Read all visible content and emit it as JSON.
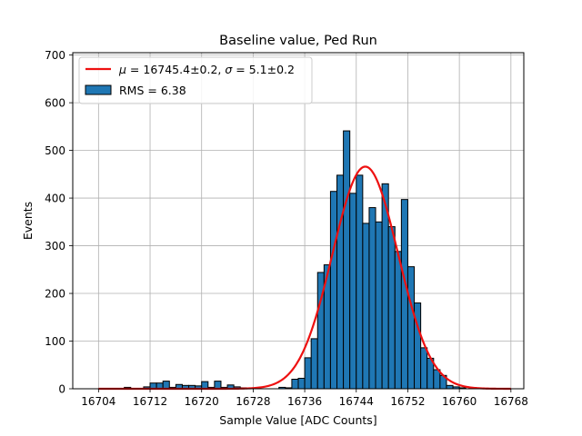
{
  "chart_data": {
    "type": "bar",
    "title": "Baseline value, Ped Run",
    "xlabel": "Sample Value [ADC Counts]",
    "ylabel": "Events",
    "xlim": [
      16700.0,
      16770.0
    ],
    "ylim": [
      0,
      705
    ],
    "x_ticks": [
      16704,
      16712,
      16720,
      16728,
      16736,
      16744,
      16752,
      16760,
      16768
    ],
    "y_ticks": [
      0,
      100,
      200,
      300,
      400,
      500,
      600,
      700
    ],
    "grid": true,
    "legend_position": "top-left",
    "bin_width": 1,
    "histogram": {
      "name": "RMS = 6.38",
      "color": "#1f77b4",
      "bin_left_edges": [
        16708,
        16711,
        16712,
        16713,
        16714,
        16715,
        16716,
        16717,
        16718,
        16719,
        16720,
        16721,
        16722,
        16723,
        16724,
        16725,
        16726,
        16727,
        16728,
        16729,
        16730,
        16731,
        16732,
        16733,
        16734,
        16735,
        16736,
        16737,
        16738,
        16739,
        16740,
        16741,
        16742,
        16743,
        16744,
        16745,
        16746,
        16747,
        16748,
        16749,
        16750,
        16751,
        16752,
        16753,
        16754,
        16755,
        16756,
        16757,
        16758,
        16759,
        16760
      ],
      "counts": [
        3,
        4,
        12,
        12,
        16,
        3,
        9,
        7,
        7,
        6,
        15,
        3,
        16,
        3,
        8,
        4,
        2,
        0,
        0,
        0,
        0,
        0,
        3,
        2,
        20,
        22,
        65,
        105,
        244,
        260,
        414,
        448,
        541,
        410,
        448,
        347,
        380,
        350,
        430,
        340,
        288,
        397,
        256,
        180,
        86,
        64,
        40,
        28,
        7,
        4,
        2
      ]
    },
    "fit": {
      "name": "$\\mu = 16745.4 \\pm 0.2,\\ \\sigma = 5.1 \\pm 0.2$",
      "label_parts": {
        "mu_symbol": "μ",
        "mu_value": " = 16745.4±0.2, ",
        "sigma_symbol": "σ",
        "sigma_value": " = 5.1±0.2"
      },
      "color": "#ee1111",
      "function": "gaussian",
      "mu": 16745.4,
      "sigma": 5.1,
      "amplitude": 466,
      "x_range": [
        16704,
        16768
      ]
    }
  }
}
